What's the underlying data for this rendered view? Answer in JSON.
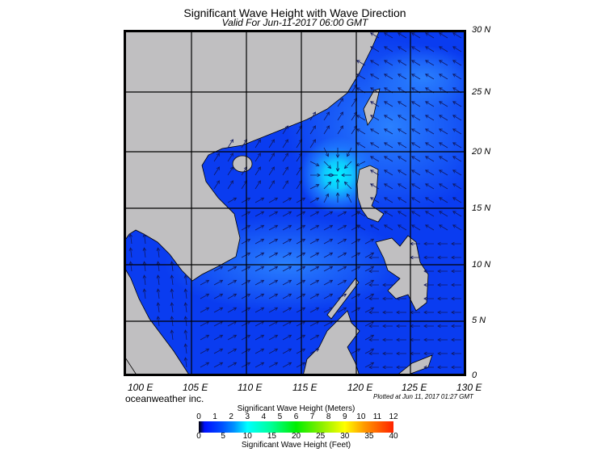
{
  "title": "Significant Wave Height with Wave Direction",
  "subtitle": "Valid For Jun-11-2017 06:00 GMT",
  "map": {
    "region": "South China Sea",
    "lat_labels": [
      "30 N",
      "25 N",
      "20 N",
      "15 N",
      "10 N",
      "5 N",
      "0"
    ],
    "lon_labels": [
      "100 E",
      "105 E",
      "110 E",
      "115 E",
      "120 E",
      "125 E",
      "130 E"
    ],
    "colors": {
      "land": "#c0bfc1",
      "ocean": "#0a3cf0",
      "ocean_light": "#1f6bff",
      "peak": "#00f0ff",
      "arrow": "#101860"
    }
  },
  "credit": "oceanweather inc.",
  "plotted": "Plotted at Jun 11, 2017 01:27 GMT",
  "colorbar": {
    "title_meters": "Significant Wave Height (Meters)",
    "title_feet": "Significant Wave Height (Feet)",
    "meters_ticks": [
      "0",
      "1",
      "2",
      "3",
      "4",
      "5",
      "6",
      "7",
      "8",
      "9",
      "10",
      "11",
      "12"
    ],
    "feet_ticks": [
      "0",
      "5",
      "10",
      "15",
      "20",
      "25",
      "30",
      "35",
      "40"
    ]
  }
}
